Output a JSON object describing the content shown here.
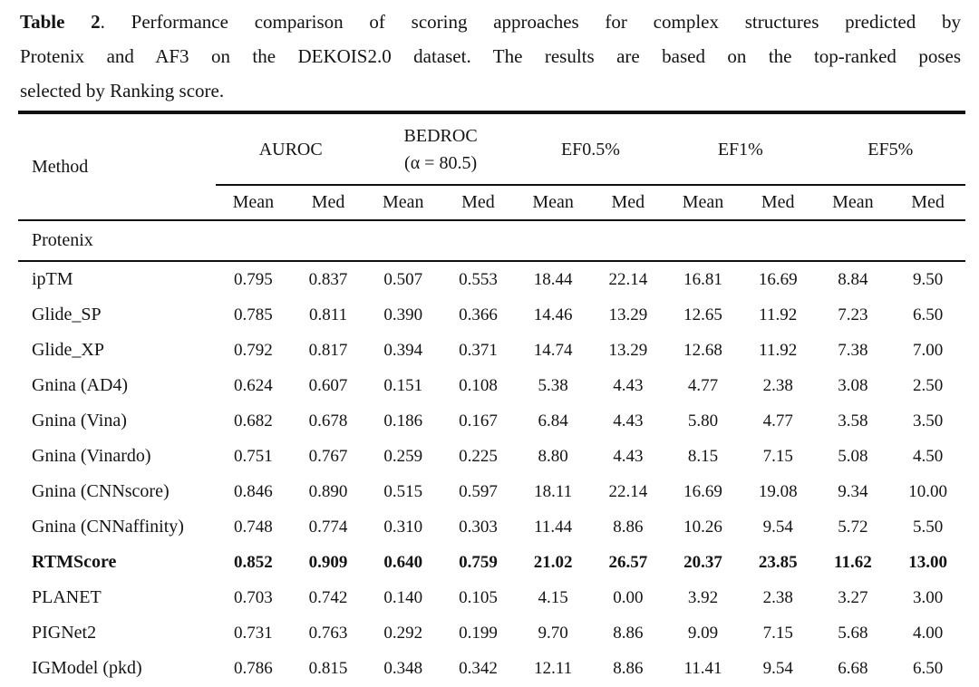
{
  "caption": {
    "prefix": "Table 2",
    "line1_rest": ". Performance comparison of scoring approaches for complex structures predicted by",
    "line2": "Protenix and AF3 on the DEKOIS2.0 dataset. The results are based on the top-ranked poses",
    "line3": "selected by Ranking score."
  },
  "table": {
    "method_header": "Method",
    "groups": [
      {
        "label": "AUROC",
        "sub": ""
      },
      {
        "label": "BEDROC",
        "sub": "(α = 80.5)"
      },
      {
        "label": "EF0.5%",
        "sub": ""
      },
      {
        "label": "EF1%",
        "sub": ""
      },
      {
        "label": "EF5%",
        "sub": ""
      }
    ],
    "subheaders": [
      "Mean",
      "Med",
      "Mean",
      "Med",
      "Mean",
      "Med",
      "Mean",
      "Med",
      "Mean",
      "Med"
    ],
    "group_label": "Protenix",
    "rows": [
      {
        "method": "ipTM",
        "bold": false,
        "values": [
          "0.795",
          "0.837",
          "0.507",
          "0.553",
          "18.44",
          "22.14",
          "16.81",
          "16.69",
          "8.84",
          "9.50"
        ]
      },
      {
        "method": "Glide_SP",
        "bold": false,
        "values": [
          "0.785",
          "0.811",
          "0.390",
          "0.366",
          "14.46",
          "13.29",
          "12.65",
          "11.92",
          "7.23",
          "6.50"
        ]
      },
      {
        "method": "Glide_XP",
        "bold": false,
        "values": [
          "0.792",
          "0.817",
          "0.394",
          "0.371",
          "14.74",
          "13.29",
          "12.68",
          "11.92",
          "7.38",
          "7.00"
        ]
      },
      {
        "method": "Gnina (AD4)",
        "bold": false,
        "values": [
          "0.624",
          "0.607",
          "0.151",
          "0.108",
          "5.38",
          "4.43",
          "4.77",
          "2.38",
          "3.08",
          "2.50"
        ]
      },
      {
        "method": "Gnina (Vina)",
        "bold": false,
        "values": [
          "0.682",
          "0.678",
          "0.186",
          "0.167",
          "6.84",
          "4.43",
          "5.80",
          "4.77",
          "3.58",
          "3.50"
        ]
      },
      {
        "method": "Gnina (Vinardo)",
        "bold": false,
        "values": [
          "0.751",
          "0.767",
          "0.259",
          "0.225",
          "8.80",
          "4.43",
          "8.15",
          "7.15",
          "5.08",
          "4.50"
        ]
      },
      {
        "method": "Gnina (CNNscore)",
        "bold": false,
        "values": [
          "0.846",
          "0.890",
          "0.515",
          "0.597",
          "18.11",
          "22.14",
          "16.69",
          "19.08",
          "9.34",
          "10.00"
        ]
      },
      {
        "method": "Gnina (CNNaffinity)",
        "bold": false,
        "values": [
          "0.748",
          "0.774",
          "0.310",
          "0.303",
          "11.44",
          "8.86",
          "10.26",
          "9.54",
          "5.72",
          "5.50"
        ]
      },
      {
        "method": "RTMScore",
        "bold": true,
        "values": [
          "0.852",
          "0.909",
          "0.640",
          "0.759",
          "21.02",
          "26.57",
          "20.37",
          "23.85",
          "11.62",
          "13.00"
        ]
      },
      {
        "method": "PLANET",
        "bold": false,
        "values": [
          "0.703",
          "0.742",
          "0.140",
          "0.105",
          "4.15",
          "0.00",
          "3.92",
          "2.38",
          "3.27",
          "3.00"
        ]
      },
      {
        "method": "PIGNet2",
        "bold": false,
        "values": [
          "0.731",
          "0.763",
          "0.292",
          "0.199",
          "9.70",
          "8.86",
          "9.09",
          "7.15",
          "5.68",
          "4.00"
        ]
      },
      {
        "method": "IGModel (pkd)",
        "bold": false,
        "values": [
          "0.786",
          "0.815",
          "0.348",
          "0.342",
          "12.11",
          "8.86",
          "11.41",
          "9.54",
          "6.68",
          "6.50"
        ]
      }
    ]
  }
}
